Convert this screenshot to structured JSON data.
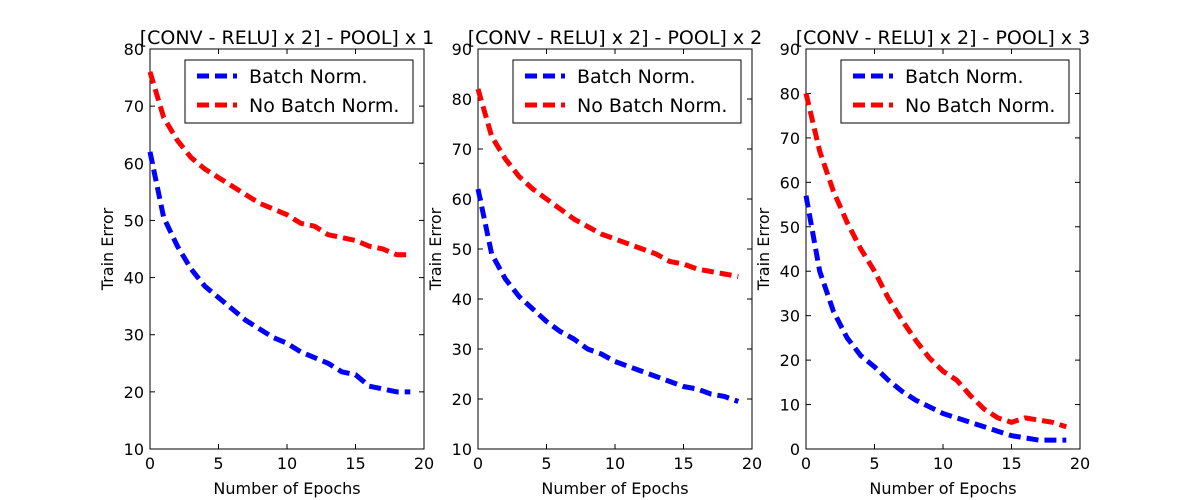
{
  "chart_data": [
    {
      "type": "line",
      "title": "[CONV - RELU] x 2] - POOL] x 1",
      "xlabel": "Number of Epochs",
      "ylabel": "Train Error",
      "xlim": [
        0,
        20
      ],
      "ylim": [
        10,
        80
      ],
      "xticks": [
        0,
        5,
        10,
        15,
        20
      ],
      "yticks": [
        10,
        20,
        30,
        40,
        50,
        60,
        70,
        80
      ],
      "legend_position": "top-right",
      "x": [
        0,
        1,
        2,
        3,
        4,
        5,
        6,
        7,
        8,
        9,
        10,
        11,
        12,
        13,
        14,
        15,
        16,
        17,
        18,
        19
      ],
      "series": [
        {
          "name": "Batch Norm.",
          "color": "#0000ff",
          "values": [
            62,
            50.5,
            45.5,
            41.5,
            38.5,
            36.5,
            34.5,
            32.5,
            31,
            29.5,
            28.5,
            27,
            26,
            25,
            23.5,
            23,
            21,
            20.5,
            20,
            20
          ]
        },
        {
          "name": "No Batch Norm.",
          "color": "#ff0000",
          "values": [
            76,
            68,
            64,
            61,
            59,
            57.5,
            56,
            54.5,
            53,
            52,
            51,
            49.5,
            49,
            47.5,
            47,
            46.5,
            45.5,
            45,
            44,
            44
          ]
        }
      ]
    },
    {
      "type": "line",
      "title": "[CONV - RELU] x 2] - POOL] x 2",
      "xlabel": "Number of Epochs",
      "ylabel": "Train Error",
      "xlim": [
        0,
        20
      ],
      "ylim": [
        10,
        90
      ],
      "xticks": [
        0,
        5,
        10,
        15,
        20
      ],
      "yticks": [
        10,
        20,
        30,
        40,
        50,
        60,
        70,
        80,
        90
      ],
      "legend_position": "top-right",
      "x": [
        0,
        1,
        2,
        3,
        4,
        5,
        6,
        7,
        8,
        9,
        10,
        11,
        12,
        13,
        14,
        15,
        16,
        17,
        18,
        19
      ],
      "series": [
        {
          "name": "Batch Norm.",
          "color": "#0000ff",
          "values": [
            62,
            49,
            44,
            40.5,
            38,
            35.5,
            33.5,
            32,
            30,
            29,
            27.5,
            26.5,
            25.5,
            24.5,
            23.5,
            22.5,
            22,
            21,
            20.5,
            19.5
          ]
        },
        {
          "name": "No Batch Norm.",
          "color": "#ff0000",
          "values": [
            82,
            72.5,
            68,
            64.5,
            62,
            60,
            58,
            56,
            54.5,
            53,
            52,
            51,
            50,
            49,
            47.5,
            47,
            46,
            45.5,
            45,
            44.5
          ]
        }
      ]
    },
    {
      "type": "line",
      "title": "[CONV - RELU] x 2] - POOL] x 3",
      "xlabel": "Number of Epochs",
      "ylabel": "Train Error",
      "xlim": [
        0,
        20
      ],
      "ylim": [
        0,
        90
      ],
      "xticks": [
        0,
        5,
        10,
        15,
        20
      ],
      "yticks": [
        0,
        10,
        20,
        30,
        40,
        50,
        60,
        70,
        80,
        90
      ],
      "legend_position": "top-right",
      "x": [
        0,
        1,
        2,
        3,
        4,
        5,
        6,
        7,
        8,
        9,
        10,
        11,
        12,
        13,
        14,
        15,
        16,
        17,
        18,
        19
      ],
      "series": [
        {
          "name": "Batch Norm.",
          "color": "#0000ff",
          "values": [
            57,
            40,
            31,
            25,
            21,
            18.5,
            15.5,
            13,
            11,
            9.5,
            8,
            7,
            6,
            5,
            4,
            3,
            2.5,
            2,
            2,
            2
          ]
        },
        {
          "name": "No Batch Norm.",
          "color": "#ff0000",
          "values": [
            80,
            67,
            58,
            51,
            45,
            40,
            34,
            29,
            24.5,
            20.5,
            17.5,
            15.5,
            12,
            9,
            7,
            6,
            7,
            6.5,
            6,
            5
          ]
        }
      ]
    }
  ]
}
